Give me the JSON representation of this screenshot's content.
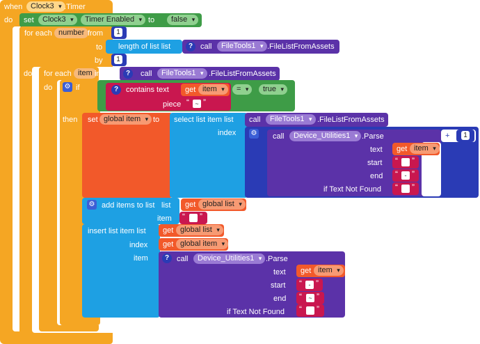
{
  "event": {
    "when": "when",
    "component": "Clock3",
    "event_name": ".Timer",
    "do": "do"
  },
  "set_timer": {
    "set": "set",
    "component": "Clock3",
    "property": "Timer Enabled",
    "to": "to",
    "value": "false"
  },
  "for_range": {
    "label": "for each",
    "var": "number",
    "from": "from",
    "from_value": "1",
    "to": "to",
    "length_label": "length of list  list",
    "call": "call",
    "component": "FileTools1",
    "method": ".FileListFromAssets",
    "by": "by",
    "by_value": "1",
    "do": "do"
  },
  "for_list": {
    "label": "for each",
    "var": "item",
    "in_list": "in list",
    "call": "call",
    "component": "FileTools1",
    "method": ".FileListFromAssets",
    "do": "do"
  },
  "if_block": {
    "if": "if",
    "contains": "contains  text",
    "get": "get",
    "var": "item",
    "op": "=",
    "truth": "true",
    "piece": "piece",
    "piece_value": "~",
    "then": "then"
  },
  "set_global": {
    "set": "set",
    "var": "global item",
    "to": "to",
    "select": "select list item  list",
    "call": "call",
    "component": "FileTools1",
    "method": ".FileListFromAssets",
    "index": "index"
  },
  "parse1": {
    "call": "call",
    "component": "Device_Utilities1",
    "method": ".Parse",
    "text": "text",
    "get": "get",
    "var": "item",
    "start": "start",
    "start_value": "",
    "end": "end",
    "end_value": "-",
    "not_found": "if Text Not Found",
    "not_found_value": "",
    "plus": "+",
    "plus_value": "1"
  },
  "add_items": {
    "label": "add items to list",
    "list": "list",
    "get": "get",
    "var": "global list",
    "item": "item",
    "item_value": ""
  },
  "insert": {
    "label": "insert list item  list",
    "get": "get",
    "list_var": "global list",
    "index": "index",
    "index_var": "global item",
    "item": "item"
  },
  "parse2": {
    "call": "call",
    "component": "Device_Utilities1",
    "method": ".Parse",
    "text": "text",
    "get": "get",
    "var": "item",
    "start": "start",
    "start_value": "-",
    "end": "end",
    "end_value": "~",
    "not_found": "if Text Not Found",
    "not_found_value": ""
  },
  "colors": {
    "event": "#f5a623",
    "control": "#f5a623",
    "component_green": "#3e9c47",
    "procedure": "#5b32a8",
    "list": "#1ea0e3",
    "variable": "#f2592a",
    "text": "#c9174f",
    "math": "#2a3bb5"
  }
}
